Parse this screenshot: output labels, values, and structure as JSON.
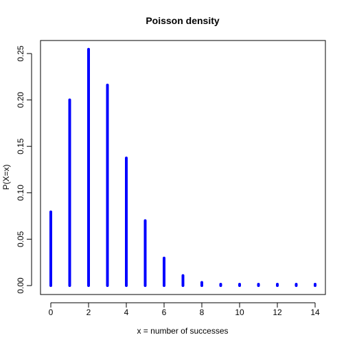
{
  "chart_data": {
    "type": "bar",
    "style": "spikes",
    "title": "Poisson density",
    "xlabel": "x = number of successes",
    "ylabel": "P(X=x)",
    "x": [
      0,
      1,
      2,
      3,
      4,
      5,
      6,
      7,
      8,
      9,
      10,
      11,
      12,
      13,
      14
    ],
    "values": [
      0.0794,
      0.2001,
      0.2546,
      0.2161,
      0.1375,
      0.07,
      0.0297,
      0.0108,
      0.0034,
      0.001,
      0.0002,
      5e-05,
      1e-05,
      2e-06,
      4e-07
    ],
    "xlim": [
      0,
      14
    ],
    "ylim": [
      0,
      0.25
    ],
    "xticks": [
      0,
      2,
      4,
      6,
      8,
      10,
      12,
      14
    ],
    "xtick_labels": [
      "0",
      "2",
      "4",
      "6",
      "8",
      "10",
      "12",
      "14"
    ],
    "yticks": [
      0,
      0.05,
      0.1,
      0.15,
      0.2,
      0.25
    ],
    "ytick_labels": [
      "0.00",
      "0.05",
      "0.10",
      "0.15",
      "0.20",
      "0.25"
    ],
    "color": "#0000ff",
    "grid": false
  }
}
